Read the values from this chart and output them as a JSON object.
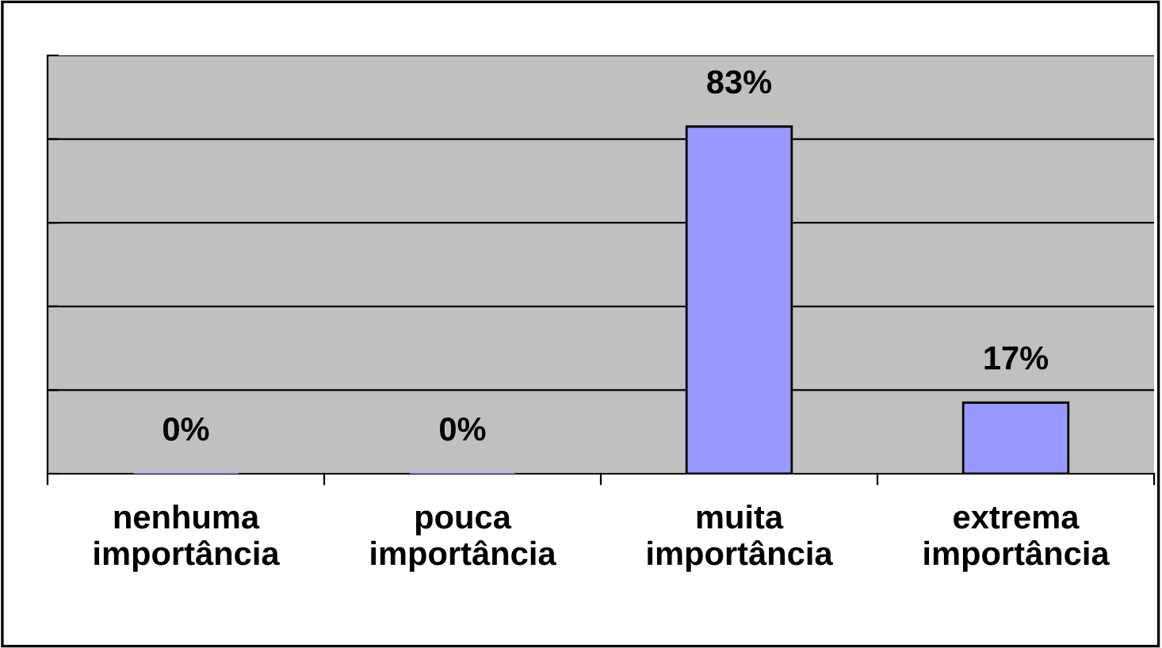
{
  "chart_data": {
    "type": "bar",
    "categories": [
      "nenhuma\nimportância",
      "pouca\nimportância",
      "muita\nimportância",
      "extrema\nimportância"
    ],
    "values": [
      0,
      0,
      83,
      17
    ],
    "value_labels": [
      "0%",
      "0%",
      "83%",
      "17%"
    ],
    "color": "#9999ff",
    "ylim": [
      0,
      100
    ],
    "yticks": [
      {
        "value": 0,
        "label": null
      },
      {
        "value": 20,
        "label": null
      },
      {
        "value": 40,
        "label": null
      },
      {
        "value": 60,
        "label": null
      },
      {
        "value": 80,
        "label": null
      },
      {
        "value": 100,
        "label": null
      }
    ],
    "grid": "y",
    "tick_labels": "x"
  }
}
